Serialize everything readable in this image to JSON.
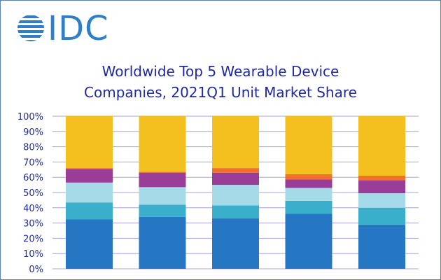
{
  "logo": {
    "text": "IDC"
  },
  "chart_data": {
    "type": "bar",
    "stacked": true,
    "title_lines": [
      "Worldwide Top 5 Wearable Device",
      "Companies, 2021Q1 Unit Market Share"
    ],
    "y_ticks": [
      "0%",
      "10%",
      "20%",
      "30%",
      "40%",
      "50%",
      "60%",
      "70%",
      "80%",
      "90%",
      "100%"
    ],
    "ylim": [
      0,
      100
    ],
    "grid": true,
    "categories": [
      "",
      "",
      "",
      "",
      ""
    ],
    "series": [
      {
        "color": "#2677c3",
        "values": [
          32.5,
          34,
          33,
          36,
          29
        ]
      },
      {
        "color": "#3aafcc",
        "values": [
          11,
          8,
          8.5,
          8.5,
          11
        ]
      },
      {
        "color": "#a5dbe8",
        "values": [
          13,
          11.5,
          13.5,
          8.5,
          9.5
        ]
      },
      {
        "color": "#9a3d98",
        "values": [
          9,
          9.5,
          8,
          5.5,
          8.5
        ]
      },
      {
        "color": "#f26f2c",
        "values": [
          0.5,
          0.5,
          3,
          3.5,
          3
        ]
      },
      {
        "color": "#f4c01f",
        "values": [
          34,
          36.5,
          34,
          38,
          39
        ]
      }
    ]
  }
}
